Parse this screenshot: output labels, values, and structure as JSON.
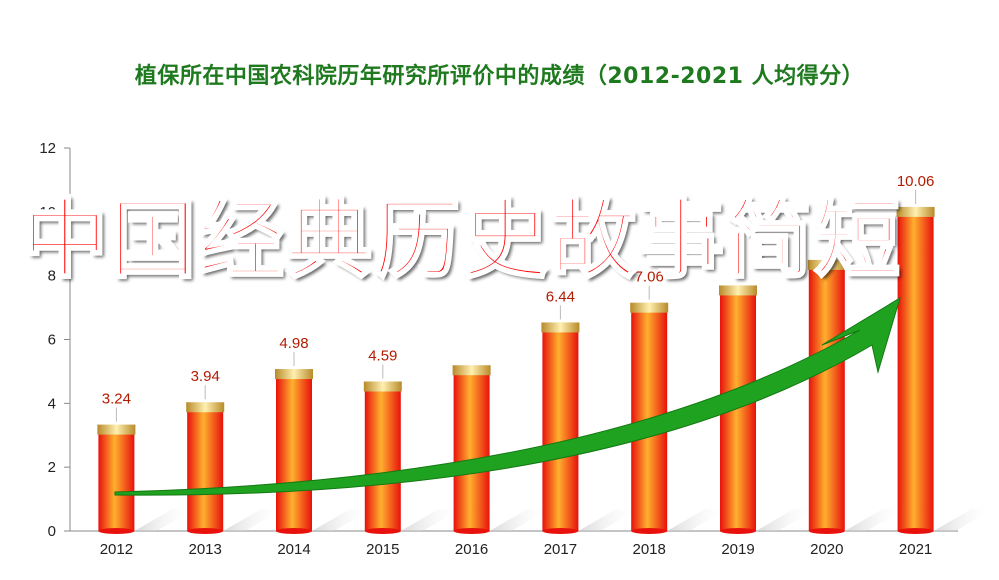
{
  "overlay_text": "中国经典历史故事简短",
  "colors": {
    "title": "#1f7a1f",
    "bar_light": "#ffb02e",
    "bar_dark": "#e8110c",
    "cap": "#d9b24a",
    "value_label": "#b31b00",
    "arrow": "#1fa21f",
    "overlay": "#ff0000"
  },
  "chart_data": {
    "type": "bar",
    "title": "植保所在中国农科院历年研究所评价中的成绩（2012-2021  人均得分）",
    "xlabel": "",
    "ylabel": "",
    "categories": [
      "2012",
      "2013",
      "2014",
      "2015",
      "2016",
      "2017",
      "2018",
      "2019",
      "2020",
      "2021"
    ],
    "values": [
      3.24,
      3.94,
      4.98,
      4.59,
      5.1,
      6.44,
      7.06,
      7.6,
      8.4,
      10.06
    ],
    "value_labels": [
      "3.24",
      "3.94",
      "4.98",
      "4.59",
      "",
      "6.44",
      "7.06",
      "",
      "",
      "10.06"
    ],
    "ylim": [
      0,
      12
    ],
    "yticks": [
      0,
      2,
      4,
      6,
      8,
      10,
      12
    ],
    "grid": false,
    "legend": "none",
    "annotation": "upward-trend-arrow"
  }
}
